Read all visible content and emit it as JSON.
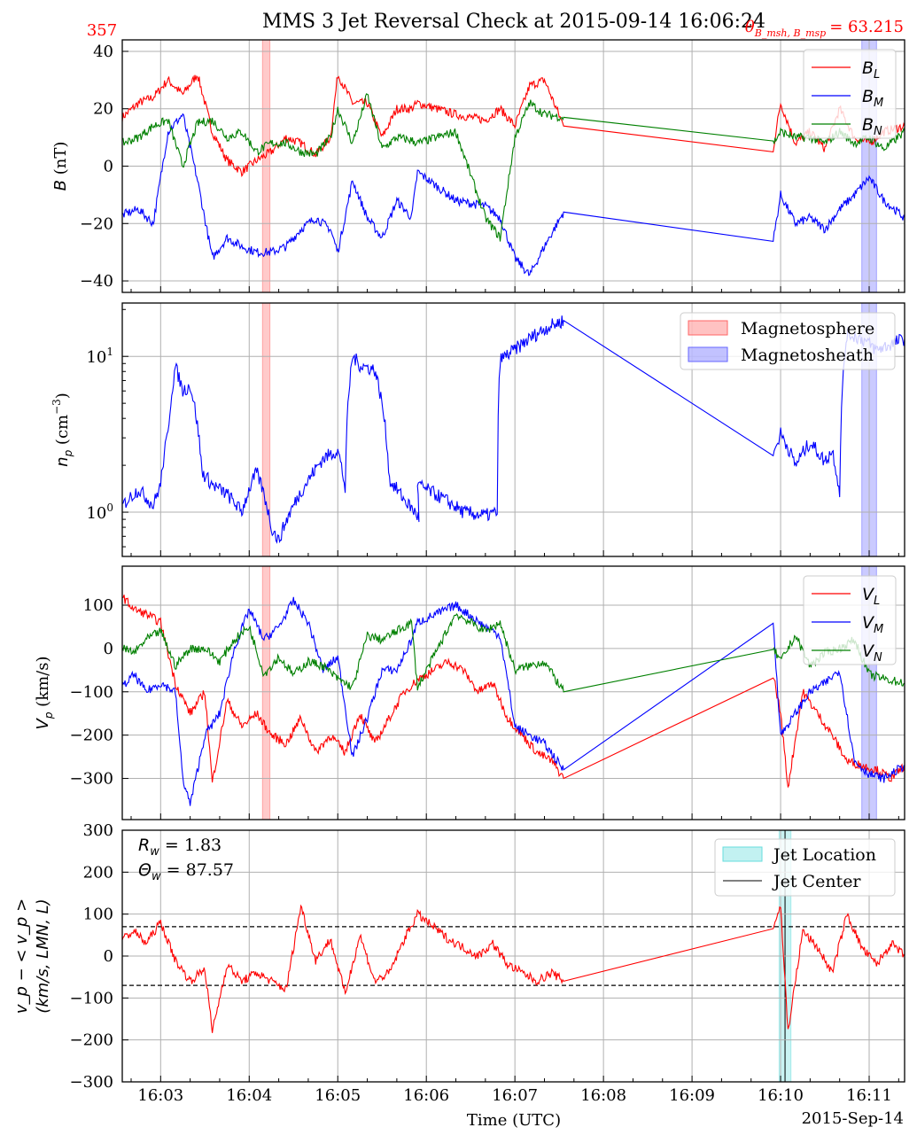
{
  "title": "MMS 3 Jet Reversal Check at 2015-09-14 16:06:24",
  "corner_left": "357",
  "corner_right": "θ_{B_msh, B_msp} = 63.215",
  "corner_right_label": "θ",
  "corner_right_sub": "B_msh, B_msp",
  "corner_right_value": "= 63.215",
  "colors": {
    "red": "#ff0000",
    "blue": "#0000ff",
    "green": "#008000",
    "cyan": "#00bfbf",
    "grid": "#b0b0b0"
  },
  "xaxis": {
    "label": "Time (UTC)",
    "date": "2015-Sep-14",
    "ticks": [
      "16:03",
      "16:04",
      "16:05",
      "16:06",
      "16:07",
      "16:08",
      "16:09",
      "16:10",
      "16:11"
    ]
  },
  "shading": {
    "magnetosphere": [
      "16:04:09",
      "16:04:14"
    ],
    "magnetosheath": [
      "16:10:55",
      "16:11:05"
    ],
    "jet_location": [
      "16:09:59",
      "16:10:07"
    ],
    "jet_center": "16:10:03"
  },
  "annotations": {
    "r_w": "R_w = 1.83",
    "theta_w": "Θ_w = 87.57"
  },
  "chart_data": [
    {
      "type": "line",
      "ylabel": "B (nT)",
      "ylim": [
        -44,
        44
      ],
      "yticks": [
        "40",
        "20",
        "0",
        "−20",
        "−40"
      ],
      "legend": "top-right",
      "series": [
        {
          "name": "B_L",
          "label_main": "B",
          "label_sub": "L",
          "color": "#ff0000",
          "t": [
            "16:02:34",
            "16:02:45",
            "16:02:55",
            "16:03:05",
            "16:03:15",
            "16:03:25",
            "16:03:35",
            "16:03:45",
            "16:03:55",
            "16:04:05",
            "16:04:15",
            "16:04:25",
            "16:04:35",
            "16:04:45",
            "16:04:55",
            "16:05:00",
            "16:05:10",
            "16:05:20",
            "16:05:30",
            "16:05:40",
            "16:05:50",
            "16:05:54",
            "16:06:20",
            "16:06:40",
            "16:06:50",
            "16:07:00",
            "16:07:10",
            "16:07:20",
            "16:07:33",
            "16:09:55",
            "16:10:00",
            "16:10:10",
            "16:10:20",
            "16:10:30",
            "16:10:40",
            "16:10:50",
            "16:11:00",
            "16:11:10",
            "16:11:24"
          ],
          "v": [
            17,
            22,
            24,
            30,
            25,
            32,
            12,
            2,
            -2,
            2,
            5,
            10,
            8,
            4,
            10,
            32,
            22,
            22,
            10,
            20,
            20,
            22,
            18,
            16,
            20,
            14,
            28,
            30,
            14,
            6,
            22,
            8,
            12,
            6,
            20,
            10,
            8,
            12,
            14
          ]
        },
        {
          "name": "B_M",
          "label_main": "B",
          "label_sub": "M",
          "color": "#0000ff",
          "t": [
            "16:02:34",
            "16:02:45",
            "16:02:55",
            "16:03:05",
            "16:03:15",
            "16:03:25",
            "16:03:35",
            "16:03:45",
            "16:03:55",
            "16:04:05",
            "16:04:15",
            "16:04:25",
            "16:04:35",
            "16:04:45",
            "16:04:55",
            "16:05:00",
            "16:05:10",
            "16:05:20",
            "16:05:30",
            "16:05:40",
            "16:05:50",
            "16:05:54",
            "16:06:20",
            "16:06:40",
            "16:06:50",
            "16:07:00",
            "16:07:10",
            "16:07:20",
            "16:07:33",
            "16:09:55",
            "16:10:00",
            "16:10:10",
            "16:10:20",
            "16:10:30",
            "16:10:40",
            "16:10:50",
            "16:11:00",
            "16:11:10",
            "16:11:24"
          ],
          "v": [
            -17,
            -15,
            -20,
            12,
            18,
            -5,
            -32,
            -25,
            -28,
            -30,
            -30,
            -28,
            -22,
            -18,
            -22,
            -30,
            -5,
            -18,
            -25,
            -12,
            -18,
            -2,
            -12,
            -14,
            -18,
            -32,
            -38,
            -28,
            -16,
            -26,
            -10,
            -20,
            -18,
            -22,
            -15,
            -10,
            -4,
            -12,
            -18
          ]
        },
        {
          "name": "B_N",
          "label_main": "B",
          "label_sub": "N",
          "color": "#008000",
          "t": [
            "16:02:34",
            "16:02:45",
            "16:02:55",
            "16:03:05",
            "16:03:15",
            "16:03:25",
            "16:03:35",
            "16:03:45",
            "16:03:55",
            "16:04:05",
            "16:04:15",
            "16:04:25",
            "16:04:35",
            "16:04:45",
            "16:04:55",
            "16:05:00",
            "16:05:10",
            "16:05:20",
            "16:05:30",
            "16:05:40",
            "16:05:50",
            "16:05:54",
            "16:06:20",
            "16:06:40",
            "16:06:50",
            "16:07:00",
            "16:07:10",
            "16:07:20",
            "16:07:33",
            "16:09:55",
            "16:10:00",
            "16:10:10",
            "16:10:20",
            "16:10:30",
            "16:10:40",
            "16:10:50",
            "16:11:00",
            "16:11:10",
            "16:11:24"
          ],
          "v": [
            8,
            10,
            14,
            16,
            0,
            15,
            16,
            10,
            12,
            5,
            8,
            8,
            5,
            4,
            10,
            20,
            8,
            25,
            6,
            10,
            9,
            8,
            12,
            -18,
            -25,
            10,
            22,
            18,
            17,
            8,
            12,
            10,
            10,
            8,
            12,
            8,
            10,
            6,
            12
          ]
        }
      ]
    },
    {
      "type": "line",
      "ylabel": "n_p (cm^-3)",
      "yscale": "log",
      "ylim": [
        0.52,
        22
      ],
      "yticks": [
        "10^1",
        "10^0"
      ],
      "legend": "top-right",
      "series": [
        {
          "name": "n_p",
          "color": "#0000ff",
          "t": [
            "16:02:34",
            "16:02:45",
            "16:02:55",
            "16:03:00",
            "16:03:05",
            "16:03:10",
            "16:03:15",
            "16:03:20",
            "16:03:28",
            "16:03:35",
            "16:03:45",
            "16:03:55",
            "16:04:05",
            "16:04:15",
            "16:04:20",
            "16:04:30",
            "16:04:40",
            "16:04:50",
            "16:05:00",
            "16:05:05",
            "16:05:10",
            "16:05:15",
            "16:05:25",
            "16:05:35",
            "16:05:45",
            "16:05:55",
            "16:05:54",
            "16:06:25",
            "16:06:40",
            "16:06:48",
            "16:06:50",
            "16:07:00",
            "16:07:10",
            "16:07:20",
            "16:07:33",
            "16:09:55",
            "16:10:00",
            "16:10:10",
            "16:10:20",
            "16:10:30",
            "16:10:35",
            "16:10:40",
            "16:10:45",
            "16:10:55",
            "16:11:05",
            "16:11:15",
            "16:11:24"
          ],
          "v": [
            1.1,
            1.4,
            1.1,
            1.5,
            3.2,
            8.5,
            6,
            6.5,
            1.8,
            1.5,
            1.3,
            1.0,
            1.8,
            0.8,
            0.65,
            1.1,
            1.6,
            2.2,
            2.5,
            1.4,
            10,
            8.8,
            8.2,
            1.6,
            1.2,
            0.92,
            1.5,
            1.0,
            0.95,
            1.0,
            9.5,
            11,
            13,
            15,
            17,
            2.3,
            3.2,
            2.0,
            2.8,
            2.1,
            2.5,
            1.3,
            14,
            13,
            11,
            12,
            13
          ]
        }
      ]
    },
    {
      "type": "line",
      "ylabel": "V_p (km/s)",
      "ylim": [
        -395,
        190
      ],
      "yticks": [
        "100",
        "0",
        "−100",
        "−200",
        "−300"
      ],
      "legend": "top-right",
      "series": [
        {
          "name": "V_L",
          "label_main": "V",
          "label_sub": "L",
          "color": "#ff0000",
          "t": [
            "16:02:34",
            "16:02:42",
            "16:02:50",
            "16:03:00",
            "16:03:10",
            "16:03:20",
            "16:03:30",
            "16:03:35",
            "16:03:45",
            "16:03:55",
            "16:04:05",
            "16:04:15",
            "16:04:25",
            "16:04:35",
            "16:04:45",
            "16:04:55",
            "16:05:05",
            "16:05:15",
            "16:05:25",
            "16:05:35",
            "16:05:45",
            "16:05:55",
            "16:06:15",
            "16:06:25",
            "16:06:35",
            "16:06:45",
            "16:06:55",
            "16:07:05",
            "16:07:15",
            "16:07:25",
            "16:07:33",
            "16:09:55",
            "16:10:00",
            "16:10:05",
            "16:10:15",
            "16:10:25",
            "16:10:35",
            "16:10:45",
            "16:10:55",
            "16:11:05",
            "16:11:15",
            "16:11:24"
          ],
          "v": [
            120,
            90,
            80,
            60,
            -80,
            -150,
            -100,
            -310,
            -120,
            -180,
            -150,
            -200,
            -220,
            -160,
            -240,
            -200,
            -240,
            -150,
            -220,
            -160,
            -100,
            -70,
            -30,
            -50,
            -100,
            -80,
            -160,
            -200,
            -240,
            -260,
            -300,
            -60,
            -150,
            -320,
            -100,
            -150,
            -200,
            -260,
            -270,
            -280,
            -300,
            -270
          ]
        },
        {
          "name": "V_M",
          "label_main": "V",
          "label_sub": "M",
          "color": "#0000ff",
          "t": [
            "16:02:34",
            "16:02:42",
            "16:02:50",
            "16:03:00",
            "16:03:10",
            "16:03:15",
            "16:03:20",
            "16:03:30",
            "16:03:40",
            "16:03:50",
            "16:04:00",
            "16:04:10",
            "16:04:20",
            "16:04:30",
            "16:04:40",
            "16:04:50",
            "16:05:00",
            "16:05:10",
            "16:05:20",
            "16:05:30",
            "16:05:40",
            "16:05:50",
            "16:05:54",
            "16:06:20",
            "16:06:40",
            "16:06:50",
            "16:07:00",
            "16:07:10",
            "16:07:20",
            "16:07:33",
            "16:09:55",
            "16:10:00",
            "16:10:10",
            "16:10:20",
            "16:10:30",
            "16:10:40",
            "16:10:50",
            "16:11:00",
            "16:11:10",
            "16:11:24"
          ],
          "v": [
            -90,
            -60,
            -100,
            -80,
            -100,
            -300,
            -360,
            -200,
            -150,
            0,
            90,
            20,
            50,
            110,
            60,
            -50,
            -20,
            -250,
            -160,
            -50,
            -50,
            20,
            60,
            100,
            50,
            30,
            -180,
            -200,
            -220,
            -280,
            60,
            -200,
            -150,
            -100,
            -80,
            -50,
            -260,
            -290,
            -300,
            -270
          ]
        },
        {
          "name": "V_N",
          "label_main": "V",
          "label_sub": "N",
          "color": "#008000",
          "t": [
            "16:02:34",
            "16:02:42",
            "16:02:50",
            "16:03:00",
            "16:03:10",
            "16:03:20",
            "16:03:30",
            "16:03:40",
            "16:03:50",
            "16:04:00",
            "16:04:10",
            "16:04:20",
            "16:04:30",
            "16:04:40",
            "16:04:50",
            "16:05:00",
            "16:05:10",
            "16:05:20",
            "16:05:30",
            "16:05:40",
            "16:05:50",
            "16:05:54",
            "16:06:20",
            "16:06:40",
            "16:06:50",
            "16:07:00",
            "16:07:10",
            "16:07:20",
            "16:07:33",
            "16:09:55",
            "16:10:00",
            "16:10:10",
            "16:10:20",
            "16:10:30",
            "16:10:40",
            "16:10:50",
            "16:11:00",
            "16:11:10",
            "16:11:24"
          ],
          "v": [
            0,
            -10,
            20,
            40,
            -40,
            0,
            0,
            -30,
            20,
            50,
            -60,
            -20,
            -60,
            -30,
            -40,
            -70,
            -90,
            30,
            20,
            40,
            60,
            -90,
            80,
            40,
            60,
            -50,
            -40,
            -30,
            -100,
            0,
            -30,
            30,
            -40,
            -10,
            0,
            20,
            -60,
            -70,
            -80
          ]
        }
      ]
    },
    {
      "type": "line",
      "ylabel": "v_p − <v_p> (km/s, LMN, L)",
      "ylabel_line1": "v_p − < v_p >",
      "ylabel_line2": "(km/s, LMN, L)",
      "ylim": [
        -300,
        300
      ],
      "yticks": [
        "300",
        "200",
        "100",
        "0",
        "−100",
        "−200",
        "−300"
      ],
      "threshold_lines": [
        70,
        -70
      ],
      "legend": "top-right",
      "legend_items": [
        "Jet Location",
        "Jet Center"
      ],
      "series": [
        {
          "name": "v_p − <v_p>",
          "color": "#ff0000",
          "t": [
            "16:02:34",
            "16:02:42",
            "16:02:50",
            "16:03:00",
            "16:03:10",
            "16:03:20",
            "16:03:30",
            "16:03:35",
            "16:03:45",
            "16:03:55",
            "16:04:05",
            "16:04:15",
            "16:04:25",
            "16:04:35",
            "16:04:45",
            "16:04:55",
            "16:05:05",
            "16:05:15",
            "16:05:25",
            "16:05:35",
            "16:05:45",
            "16:05:54",
            "16:06:15",
            "16:06:25",
            "16:06:35",
            "16:06:45",
            "16:06:55",
            "16:07:05",
            "16:07:15",
            "16:07:25",
            "16:07:33",
            "16:09:55",
            "16:10:00",
            "16:10:05",
            "16:10:15",
            "16:10:25",
            "16:10:35",
            "16:10:45",
            "16:10:55",
            "16:11:05",
            "16:11:15",
            "16:11:24"
          ],
          "v": [
            40,
            60,
            30,
            80,
            -10,
            -60,
            -30,
            -180,
            -20,
            -60,
            -40,
            -60,
            -80,
            120,
            -10,
            40,
            -90,
            50,
            -60,
            -40,
            40,
            100,
            40,
            20,
            0,
            30,
            -20,
            -40,
            -60,
            -40,
            -60,
            70,
            120,
            -180,
            60,
            20,
            -40,
            100,
            20,
            -20,
            30,
            0
          ]
        }
      ]
    }
  ]
}
